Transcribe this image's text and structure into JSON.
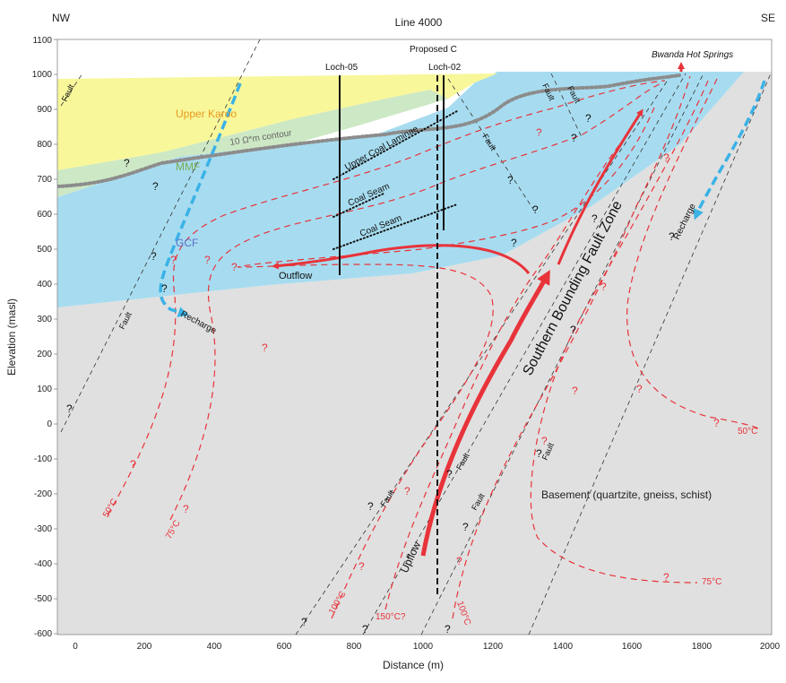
{
  "header": {
    "left": "NW",
    "center": "Line 4000",
    "right": "SE"
  },
  "axes": {
    "xlabel": "Distance (m)",
    "ylabel": "Elevation (masl)",
    "xticks": [
      "0",
      "200",
      "400",
      "600",
      "800",
      "1000",
      "1200",
      "1400",
      "1600",
      "1800",
      "2000"
    ],
    "yticks": [
      "1100",
      "1000",
      "900",
      "800",
      "700",
      "600",
      "500",
      "400",
      "300",
      "200",
      "100",
      "0",
      "-100",
      "-200",
      "-300",
      "-400",
      "-500",
      "-600"
    ]
  },
  "wells": {
    "loch05": "Loch-05",
    "loch02": "Loch-02",
    "proposed": "Proposed C"
  },
  "units": {
    "upper_karoo": "Upper Karoo",
    "mmf": "MMF",
    "gcf": "GCF",
    "basement": "Basement (quartzite, gneiss, schist)",
    "contour": "10 Ω*m contour"
  },
  "coal": {
    "upper": "Upper Coal Laminae",
    "seam1": "Coal Seam",
    "seam2": "Coal Seam"
  },
  "features": {
    "hot_springs": "Bwanda Hot Springs",
    "fault_zone": "Southern Bounding Fault Zone",
    "outflow": "Outflow",
    "upflow": "Upflow",
    "recharge_w": "Recharge",
    "recharge_e": "Recharge",
    "fault": "Fault"
  },
  "isotherms": {
    "w50": "50°C",
    "w75": "75°C",
    "c100": "100°C",
    "c150": "150°C?",
    "e100": "100°C",
    "e50": "50°C",
    "e75": "75°C"
  },
  "marks": {
    "q": "?"
  },
  "colors": {
    "karoo": "#f8f79a",
    "mmf": "#cce8c2",
    "gcf": "#a7dcf0",
    "basement": "#e0e0e0",
    "isotherm": "#e8333a",
    "recharge": "#3ab2e6"
  }
}
